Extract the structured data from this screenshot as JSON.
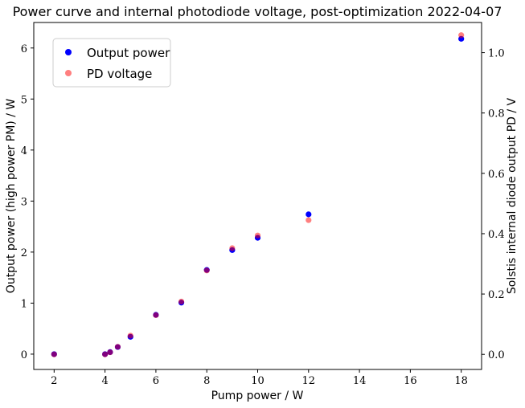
{
  "chart_data": {
    "type": "scatter",
    "title": "Power curve and internal photodiode voltage, post-optimization 2022-04-07",
    "xlabel": "Pump power / W",
    "ylabel_left": "Output power (high power PM) / W",
    "ylabel_right": "Solstis internal diode output PD / V",
    "xlim": [
      1.2,
      18.8
    ],
    "ylim_left": [
      -0.3,
      6.5
    ],
    "ylim_right": [
      -0.05,
      1.1
    ],
    "x_ticks": [
      2,
      4,
      6,
      8,
      10,
      12,
      14,
      16,
      18
    ],
    "y_left_ticks": [
      0,
      1,
      2,
      3,
      4,
      5,
      6
    ],
    "y_right_ticks": [
      0.0,
      0.2,
      0.4,
      0.6,
      0.8,
      1.0
    ],
    "y_right_tick_labels": [
      "0.0",
      "0.2",
      "0.4",
      "0.6",
      "0.8",
      "1.0"
    ],
    "legend_position": "top-left",
    "grid": false,
    "series": [
      {
        "name": "Output power",
        "axis": "left",
        "color": "#0000ff",
        "opacity": 1,
        "x": [
          2,
          4,
          4.2,
          4.5,
          5,
          6,
          7,
          8,
          9,
          10,
          12,
          18
        ],
        "y": [
          0.0,
          0.0,
          0.04,
          0.14,
          0.34,
          0.77,
          1.01,
          1.65,
          2.04,
          2.28,
          2.74,
          6.18
        ]
      },
      {
        "name": "PD voltage",
        "axis": "right",
        "color": "#ff0000",
        "opacity": 0.5,
        "x": [
          2,
          4,
          4.2,
          4.5,
          5,
          6,
          7,
          8,
          9,
          10,
          12,
          18
        ],
        "y": [
          0.0,
          0.0,
          0.007,
          0.025,
          0.062,
          0.13,
          0.175,
          0.278,
          0.352,
          0.394,
          0.445,
          1.058
        ]
      }
    ]
  }
}
